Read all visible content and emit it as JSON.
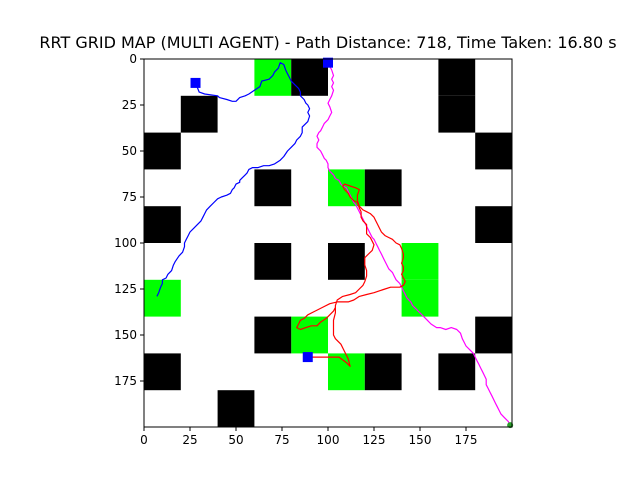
{
  "chart_data": {
    "type": "grid-map",
    "title": "RRT GRID MAP (MULTI AGENT) - Path Distance: 718, Time Taken: 16.80 s",
    "xlim": [
      0,
      200
    ],
    "ylim": [
      200,
      0
    ],
    "y_inverted": true,
    "grid": false,
    "x_ticks": [
      0,
      25,
      50,
      75,
      100,
      125,
      150,
      175
    ],
    "y_ticks": [
      0,
      25,
      50,
      75,
      100,
      125,
      150,
      175
    ],
    "cell_size": 20,
    "colors": {
      "obstacle": "#000000",
      "goal_region": "#00ff00",
      "start_marker": "#0000ff",
      "end_marker": "#2ca02c"
    },
    "obstacles": [
      [
        80,
        0
      ],
      [
        160,
        0
      ],
      [
        20,
        20
      ],
      [
        160,
        20
      ],
      [
        0,
        40
      ],
      [
        180,
        40
      ],
      [
        60,
        60
      ],
      [
        120,
        60
      ],
      [
        0,
        80
      ],
      [
        180,
        80
      ],
      [
        60,
        100
      ],
      [
        100,
        100
      ],
      [
        60,
        140
      ],
      [
        180,
        140
      ],
      [
        0,
        160
      ],
      [
        120,
        160
      ],
      [
        160,
        160
      ],
      [
        40,
        180
      ]
    ],
    "goal_regions": [
      [
        60,
        0
      ],
      [
        100,
        60
      ],
      [
        140,
        100
      ],
      [
        140,
        120
      ],
      [
        0,
        120
      ],
      [
        80,
        140
      ],
      [
        100,
        160
      ]
    ],
    "start_markers": [
      [
        28,
        13
      ],
      [
        100,
        2
      ],
      [
        89,
        162
      ]
    ],
    "end_markers": [
      [
        199,
        199
      ]
    ],
    "series": [
      {
        "color": "#0000ff",
        "points": [
          [
            28,
            13
          ],
          [
            30,
            18
          ],
          [
            33,
            19
          ],
          [
            40,
            20
          ],
          [
            41,
            21
          ],
          [
            45,
            22
          ],
          [
            48,
            23
          ],
          [
            50,
            23
          ],
          [
            52,
            21
          ],
          [
            55,
            20
          ],
          [
            57,
            19
          ],
          [
            60,
            17
          ],
          [
            63,
            15
          ],
          [
            64,
            12
          ],
          [
            68,
            11
          ],
          [
            70,
            9
          ],
          [
            71,
            7
          ],
          [
            73,
            5
          ],
          [
            74,
            2
          ],
          [
            76,
            3
          ],
          [
            77,
            6
          ],
          [
            78,
            8
          ],
          [
            79,
            10
          ],
          [
            80,
            12
          ],
          [
            82,
            14
          ],
          [
            84,
            16
          ],
          [
            85,
            18
          ],
          [
            85,
            20
          ],
          [
            87,
            22
          ],
          [
            88,
            24
          ],
          [
            89,
            25
          ],
          [
            90,
            27
          ],
          [
            89,
            29
          ],
          [
            90,
            31
          ],
          [
            89,
            34
          ],
          [
            88,
            35
          ],
          [
            86,
            37
          ],
          [
            86,
            40
          ],
          [
            85,
            42
          ],
          [
            83,
            44
          ],
          [
            82,
            46
          ],
          [
            80,
            48
          ],
          [
            78,
            50
          ],
          [
            76,
            53
          ],
          [
            74,
            55
          ],
          [
            71,
            57
          ],
          [
            68,
            58
          ],
          [
            65,
            58
          ],
          [
            62,
            59
          ],
          [
            59,
            59
          ],
          [
            57,
            60
          ],
          [
            56,
            62
          ],
          [
            55,
            63
          ],
          [
            53,
            65
          ],
          [
            52,
            66
          ],
          [
            52,
            67
          ],
          [
            50,
            68
          ],
          [
            49,
            70
          ],
          [
            48,
            71
          ],
          [
            47,
            73
          ],
          [
            45,
            74
          ],
          [
            42,
            75
          ],
          [
            40,
            76
          ],
          [
            38,
            78
          ],
          [
            36,
            80
          ],
          [
            34,
            82
          ],
          [
            33,
            84
          ],
          [
            32,
            86
          ],
          [
            31,
            88
          ],
          [
            29,
            90
          ],
          [
            27,
            92
          ],
          [
            25,
            94
          ],
          [
            24,
            96
          ],
          [
            23,
            98
          ],
          [
            22,
            100
          ],
          [
            22,
            102
          ],
          [
            21,
            105
          ],
          [
            19,
            107
          ],
          [
            17,
            110
          ],
          [
            16,
            112
          ],
          [
            15,
            115
          ],
          [
            13,
            117
          ],
          [
            12,
            119
          ],
          [
            10,
            120
          ],
          [
            10,
            122
          ],
          [
            9,
            124
          ],
          [
            8,
            127
          ],
          [
            7,
            129
          ]
        ]
      },
      {
        "color": "#ff00ff",
        "points": [
          [
            100,
            2
          ],
          [
            101,
            4
          ],
          [
            102,
            6
          ],
          [
            103,
            9
          ],
          [
            102,
            11
          ],
          [
            103,
            13
          ],
          [
            102,
            15
          ],
          [
            103,
            17
          ],
          [
            102,
            20
          ],
          [
            101,
            22
          ],
          [
            100,
            24
          ],
          [
            101,
            26
          ],
          [
            102,
            29
          ],
          [
            101,
            31
          ],
          [
            100,
            33
          ],
          [
            98,
            35
          ],
          [
            97,
            37
          ],
          [
            96,
            39
          ],
          [
            95,
            40
          ],
          [
            94,
            42
          ],
          [
            95,
            44
          ],
          [
            94,
            46
          ],
          [
            94,
            48
          ],
          [
            96,
            50
          ],
          [
            97,
            52
          ],
          [
            98,
            54
          ],
          [
            99,
            55
          ],
          [
            100,
            57
          ],
          [
            100,
            59
          ],
          [
            101,
            61
          ],
          [
            103,
            63
          ],
          [
            104,
            65
          ],
          [
            106,
            66
          ],
          [
            107,
            68
          ],
          [
            108,
            69
          ],
          [
            110,
            70
          ],
          [
            111,
            72
          ],
          [
            112,
            74
          ],
          [
            113,
            76
          ],
          [
            114,
            78
          ],
          [
            115,
            79
          ],
          [
            116,
            81
          ],
          [
            117,
            83
          ],
          [
            118,
            85
          ],
          [
            119,
            87
          ],
          [
            120,
            89
          ],
          [
            121,
            91
          ],
          [
            122,
            93
          ],
          [
            123,
            95
          ],
          [
            124,
            97
          ],
          [
            125,
            98
          ],
          [
            126,
            100
          ],
          [
            127,
            102
          ],
          [
            128,
            104
          ],
          [
            129,
            106
          ],
          [
            130,
            108
          ],
          [
            131,
            110
          ],
          [
            132,
            112
          ],
          [
            133,
            114
          ],
          [
            135,
            116
          ],
          [
            136,
            118
          ],
          [
            137,
            120
          ],
          [
            139,
            122
          ],
          [
            140,
            124
          ],
          [
            141,
            126
          ],
          [
            142,
            128
          ],
          [
            143,
            130
          ],
          [
            145,
            132
          ],
          [
            146,
            134
          ],
          [
            148,
            136
          ],
          [
            150,
            138
          ],
          [
            152,
            140
          ],
          [
            154,
            142
          ],
          [
            156,
            144
          ],
          [
            159,
            146
          ],
          [
            161,
            146
          ],
          [
            164,
            147
          ],
          [
            167,
            146
          ],
          [
            170,
            147
          ],
          [
            172,
            149
          ],
          [
            173,
            152
          ],
          [
            174,
            154
          ],
          [
            175,
            156
          ],
          [
            177,
            158
          ],
          [
            179,
            160
          ],
          [
            180,
            162
          ],
          [
            181,
            164
          ],
          [
            182,
            166
          ],
          [
            183,
            168
          ],
          [
            184,
            170
          ],
          [
            185,
            172
          ],
          [
            186,
            174
          ],
          [
            186,
            177
          ],
          [
            187,
            179
          ],
          [
            188,
            181
          ],
          [
            189,
            183
          ],
          [
            190,
            185
          ],
          [
            191,
            187
          ],
          [
            192,
            189
          ],
          [
            193,
            191
          ],
          [
            194,
            193
          ],
          [
            196,
            195
          ],
          [
            198,
            197
          ],
          [
            199,
            199
          ]
        ]
      },
      {
        "color": "#ff0000",
        "points": [
          [
            89,
            162
          ],
          [
            94,
            162
          ],
          [
            100,
            162
          ],
          [
            106,
            162
          ],
          [
            110,
            165
          ],
          [
            112,
            167
          ],
          [
            111,
            163
          ],
          [
            109,
            159
          ],
          [
            107,
            155
          ],
          [
            104,
            152
          ],
          [
            103,
            150
          ],
          [
            103,
            146
          ],
          [
            103,
            142
          ],
          [
            104,
            138
          ],
          [
            104,
            134
          ],
          [
            105,
            131
          ],
          [
            108,
            129
          ],
          [
            112,
            128
          ],
          [
            115,
            127
          ],
          [
            117,
            125
          ],
          [
            119,
            123
          ],
          [
            120,
            121
          ],
          [
            121,
            118
          ],
          [
            121,
            115
          ],
          [
            120,
            112
          ],
          [
            120,
            108
          ],
          [
            122,
            106
          ],
          [
            124,
            104
          ],
          [
            125,
            101
          ],
          [
            124,
            99
          ],
          [
            123,
            97
          ],
          [
            121,
            95
          ],
          [
            121,
            93
          ],
          [
            121,
            90
          ],
          [
            119,
            88
          ],
          [
            118,
            86
          ],
          [
            118,
            83
          ],
          [
            117,
            81
          ],
          [
            116,
            78
          ],
          [
            114,
            77
          ],
          [
            112,
            75
          ],
          [
            111,
            73
          ],
          [
            109,
            71
          ],
          [
            108,
            69
          ],
          [
            109,
            68
          ],
          [
            112,
            69
          ],
          [
            115,
            70
          ],
          [
            117,
            71
          ],
          [
            116,
            74
          ],
          [
            116,
            77
          ],
          [
            117,
            80
          ],
          [
            119,
            82
          ],
          [
            121,
            83
          ],
          [
            123,
            84
          ],
          [
            125,
            86
          ],
          [
            126,
            88
          ],
          [
            127,
            90
          ],
          [
            128,
            92
          ],
          [
            129,
            94
          ],
          [
            131,
            96
          ],
          [
            133,
            97
          ],
          [
            135,
            98
          ],
          [
            137,
            100
          ],
          [
            139,
            101
          ],
          [
            140,
            103
          ],
          [
            141,
            106
          ],
          [
            141,
            108
          ],
          [
            140,
            111
          ],
          [
            141,
            113
          ],
          [
            141,
            115
          ],
          [
            140,
            117
          ],
          [
            141,
            119
          ],
          [
            142,
            121
          ],
          [
            141,
            123
          ],
          [
            139,
            124
          ],
          [
            137,
            124
          ],
          [
            134,
            124
          ],
          [
            131,
            125
          ],
          [
            128,
            126
          ],
          [
            125,
            127
          ],
          [
            121,
            128
          ],
          [
            117,
            129
          ],
          [
            114,
            131
          ],
          [
            111,
            132
          ],
          [
            108,
            132
          ],
          [
            105,
            132
          ],
          [
            101,
            133
          ],
          [
            97,
            135
          ],
          [
            93,
            137
          ],
          [
            89,
            139
          ],
          [
            87,
            141
          ],
          [
            85,
            142
          ],
          [
            84,
            144
          ],
          [
            83,
            146
          ],
          [
            85,
            147
          ],
          [
            88,
            146
          ],
          [
            91,
            145
          ],
          [
            94,
            145
          ],
          [
            96,
            143
          ],
          [
            99,
            141
          ],
          [
            101,
            139
          ],
          [
            103,
            137
          ],
          [
            104,
            135
          ]
        ]
      }
    ]
  }
}
